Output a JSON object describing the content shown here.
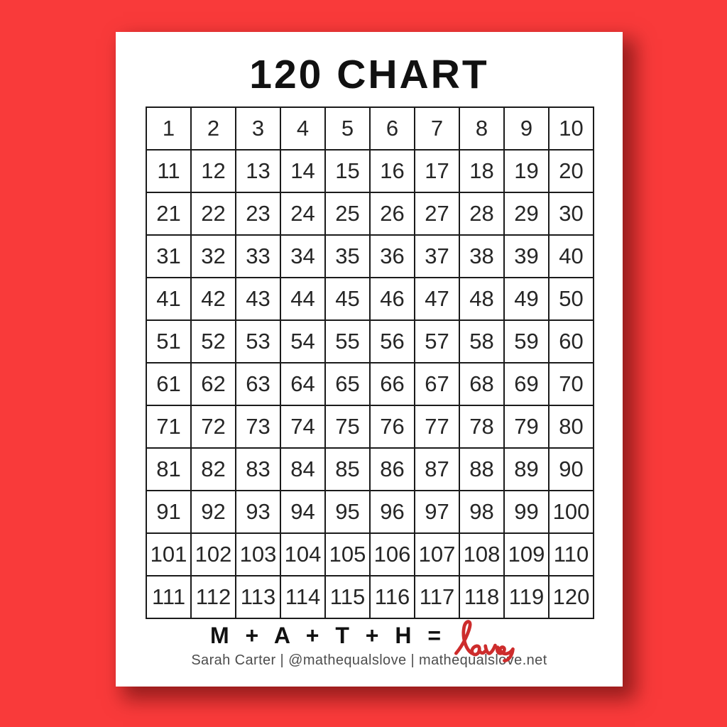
{
  "page": {
    "title": "120 CHART"
  },
  "colors": {
    "background_red": "#f93a3a",
    "paper_white": "#ffffff",
    "grid_line": "#1b1b1b",
    "number_ink": "#262626",
    "title_ink": "#111111",
    "love_red": "#cd2c2c",
    "attribution_gray": "#4d4d4d"
  },
  "grid": {
    "rows": 12,
    "cols": 10,
    "numbers": [
      [
        1,
        2,
        3,
        4,
        5,
        6,
        7,
        8,
        9,
        10
      ],
      [
        11,
        12,
        13,
        14,
        15,
        16,
        17,
        18,
        19,
        20
      ],
      [
        21,
        22,
        23,
        24,
        25,
        26,
        27,
        28,
        29,
        30
      ],
      [
        31,
        32,
        33,
        34,
        35,
        36,
        37,
        38,
        39,
        40
      ],
      [
        41,
        42,
        43,
        44,
        45,
        46,
        47,
        48,
        49,
        50
      ],
      [
        51,
        52,
        53,
        54,
        55,
        56,
        57,
        58,
        59,
        60
      ],
      [
        61,
        62,
        63,
        64,
        65,
        66,
        67,
        68,
        69,
        70
      ],
      [
        71,
        72,
        73,
        74,
        75,
        76,
        77,
        78,
        79,
        80
      ],
      [
        81,
        82,
        83,
        84,
        85,
        86,
        87,
        88,
        89,
        90
      ],
      [
        91,
        92,
        93,
        94,
        95,
        96,
        97,
        98,
        99,
        100
      ],
      [
        101,
        102,
        103,
        104,
        105,
        106,
        107,
        108,
        109,
        110
      ],
      [
        111,
        112,
        113,
        114,
        115,
        116,
        117,
        118,
        119,
        120
      ]
    ]
  },
  "footer": {
    "equation": "M + A + T + H =",
    "love_word": "love",
    "attribution": "Sarah Carter | @mathequalslove | mathequalslove.net"
  }
}
